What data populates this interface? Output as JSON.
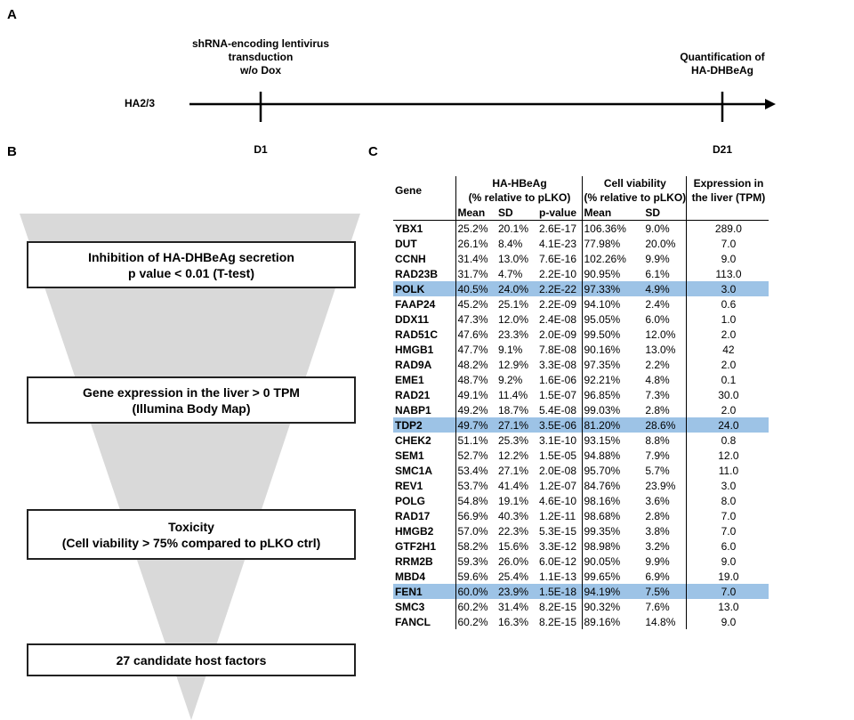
{
  "panels": {
    "a": "A",
    "b": "B",
    "c": "C"
  },
  "timeline": {
    "cell_line": "HA2/3",
    "start_text": [
      "shRNA-encoding lentivirus",
      "transduction",
      "w/o Dox"
    ],
    "end_text": [
      "Quantification of",
      "HA-DHBeAg"
    ],
    "d1": "D1",
    "d21": "D21"
  },
  "funnel": {
    "step1": [
      "Inhibition of HA-DHBeAg secretion",
      "p value < 0.01 (T-test)"
    ],
    "step2": [
      "Gene expression in the liver > 0 TPM",
      "(Illumina Body Map)"
    ],
    "step3": [
      "Toxicity",
      "(Cell viability > 75% compared to pLKO ctrl)"
    ],
    "step4": [
      "27 candidate host factors"
    ]
  },
  "table": {
    "h_gene": "Gene",
    "h_group1": [
      "HA-HBeAg",
      "(% relative to pLKO)"
    ],
    "h_group2": [
      "Cell viability",
      "(% relative to pLKO)"
    ],
    "h_expr": [
      "Expression in",
      "the liver (TPM)"
    ],
    "sub": {
      "mean": "Mean",
      "sd": "SD",
      "pvalue": "p-value",
      "mean2": "Mean",
      "sd2": "SD"
    },
    "highlight_color": "#9dc3e6",
    "rows": [
      {
        "gene": "YBX1",
        "mean": "25.2%",
        "sd": "20.1%",
        "p": "2.6E-17",
        "via": "106.36%",
        "vsd": "9.0%",
        "tpm": "289.0",
        "hl": false
      },
      {
        "gene": "DUT",
        "mean": "26.1%",
        "sd": "8.4%",
        "p": "4.1E-23",
        "via": "77.98%",
        "vsd": "20.0%",
        "tpm": "7.0",
        "hl": false
      },
      {
        "gene": "CCNH",
        "mean": "31.4%",
        "sd": "13.0%",
        "p": "7.6E-16",
        "via": "102.26%",
        "vsd": "9.9%",
        "tpm": "9.0",
        "hl": false
      },
      {
        "gene": "RAD23B",
        "mean": "31.7%",
        "sd": "4.7%",
        "p": "2.2E-10",
        "via": "90.95%",
        "vsd": "6.1%",
        "tpm": "113.0",
        "hl": false
      },
      {
        "gene": "POLK",
        "mean": "40.5%",
        "sd": "24.0%",
        "p": "2.2E-22",
        "via": "97.33%",
        "vsd": "4.9%",
        "tpm": "3.0",
        "hl": true
      },
      {
        "gene": "FAAP24",
        "mean": "45.2%",
        "sd": "25.1%",
        "p": "2.2E-09",
        "via": "94.10%",
        "vsd": "2.4%",
        "tpm": "0.6",
        "hl": false
      },
      {
        "gene": "DDX11",
        "mean": "47.3%",
        "sd": "12.0%",
        "p": "2.4E-08",
        "via": "95.05%",
        "vsd": "6.0%",
        "tpm": "1.0",
        "hl": false
      },
      {
        "gene": "RAD51C",
        "mean": "47.6%",
        "sd": "23.3%",
        "p": "2.0E-09",
        "via": "99.50%",
        "vsd": "12.0%",
        "tpm": "2.0",
        "hl": false
      },
      {
        "gene": "HMGB1",
        "mean": "47.7%",
        "sd": "9.1%",
        "p": "7.8E-08",
        "via": "90.16%",
        "vsd": "13.0%",
        "tpm": "42",
        "hl": false
      },
      {
        "gene": "RAD9A",
        "mean": "48.2%",
        "sd": "12.9%",
        "p": "3.3E-08",
        "via": "97.35%",
        "vsd": "2.2%",
        "tpm": "2.0",
        "hl": false
      },
      {
        "gene": "EME1",
        "mean": "48.7%",
        "sd": "9.2%",
        "p": "1.6E-06",
        "via": "92.21%",
        "vsd": "4.8%",
        "tpm": "0.1",
        "hl": false
      },
      {
        "gene": "RAD21",
        "mean": "49.1%",
        "sd": "11.4%",
        "p": "1.5E-07",
        "via": "96.85%",
        "vsd": "7.3%",
        "tpm": "30.0",
        "hl": false
      },
      {
        "gene": "NABP1",
        "mean": "49.2%",
        "sd": "18.7%",
        "p": "5.4E-08",
        "via": "99.03%",
        "vsd": "2.8%",
        "tpm": "2.0",
        "hl": false
      },
      {
        "gene": "TDP2",
        "mean": "49.7%",
        "sd": "27.1%",
        "p": "3.5E-06",
        "via": "81.20%",
        "vsd": "28.6%",
        "tpm": "24.0",
        "hl": true
      },
      {
        "gene": "CHEK2",
        "mean": "51.1%",
        "sd": "25.3%",
        "p": "3.1E-10",
        "via": "93.15%",
        "vsd": "8.8%",
        "tpm": "0.8",
        "hl": false
      },
      {
        "gene": "SEM1",
        "mean": "52.7%",
        "sd": "12.2%",
        "p": "1.5E-05",
        "via": "94.88%",
        "vsd": "7.9%",
        "tpm": "12.0",
        "hl": false
      },
      {
        "gene": "SMC1A",
        "mean": "53.4%",
        "sd": "27.1%",
        "p": "2.0E-08",
        "via": "95.70%",
        "vsd": "5.7%",
        "tpm": "11.0",
        "hl": false
      },
      {
        "gene": "REV1",
        "mean": "53.7%",
        "sd": "41.4%",
        "p": "1.2E-07",
        "via": "84.76%",
        "vsd": "23.9%",
        "tpm": "3.0",
        "hl": false
      },
      {
        "gene": "POLG",
        "mean": "54.8%",
        "sd": "19.1%",
        "p": "4.6E-10",
        "via": "98.16%",
        "vsd": "3.6%",
        "tpm": "8.0",
        "hl": false
      },
      {
        "gene": "RAD17",
        "mean": "56.9%",
        "sd": "40.3%",
        "p": "1.2E-11",
        "via": "98.68%",
        "vsd": "2.8%",
        "tpm": "7.0",
        "hl": false
      },
      {
        "gene": "HMGB2",
        "mean": "57.0%",
        "sd": "22.3%",
        "p": "5.3E-15",
        "via": "99.35%",
        "vsd": "3.8%",
        "tpm": "7.0",
        "hl": false
      },
      {
        "gene": "GTF2H1",
        "mean": "58.2%",
        "sd": "15.6%",
        "p": "3.3E-12",
        "via": "98.98%",
        "vsd": "3.2%",
        "tpm": "6.0",
        "hl": false
      },
      {
        "gene": "RRM2B",
        "mean": "59.3%",
        "sd": "26.0%",
        "p": "6.0E-12",
        "via": "90.05%",
        "vsd": "9.9%",
        "tpm": "9.0",
        "hl": false
      },
      {
        "gene": "MBD4",
        "mean": "59.6%",
        "sd": "25.4%",
        "p": "1.1E-13",
        "via": "99.65%",
        "vsd": "6.9%",
        "tpm": "19.0",
        "hl": false
      },
      {
        "gene": "FEN1",
        "mean": "60.0%",
        "sd": "23.9%",
        "p": "1.5E-18",
        "via": "94.19%",
        "vsd": "7.5%",
        "tpm": "7.0",
        "hl": true
      },
      {
        "gene": "SMC3",
        "mean": "60.2%",
        "sd": "31.4%",
        "p": "8.2E-15",
        "via": "90.32%",
        "vsd": "7.6%",
        "tpm": "13.0",
        "hl": false
      },
      {
        "gene": "FANCL",
        "mean": "60.2%",
        "sd": "16.3%",
        "p": "8.2E-15",
        "via": "89.16%",
        "vsd": "14.8%",
        "tpm": "9.0",
        "hl": false
      }
    ]
  }
}
